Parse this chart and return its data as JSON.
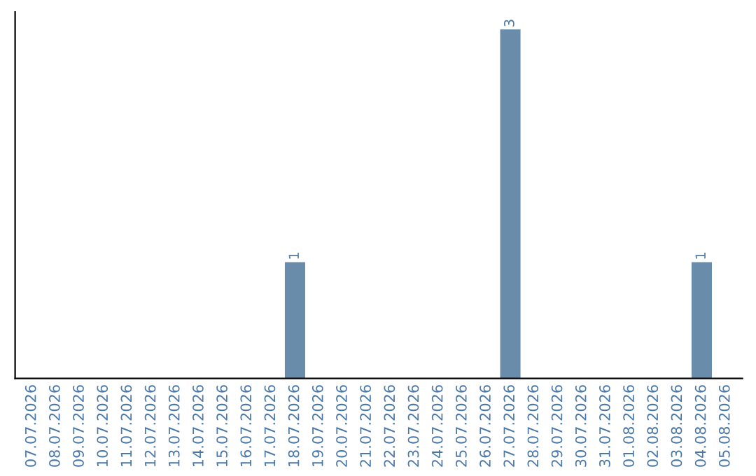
{
  "chart_data": {
    "type": "bar",
    "categories": [
      "07.07.2026",
      "08.07.2026",
      "09.07.2026",
      "10.07.2026",
      "11.07.2026",
      "12.07.2026",
      "13.07.2026",
      "14.07.2026",
      "15.07.2026",
      "16.07.2026",
      "17.07.2026",
      "18.07.2026",
      "19.07.2026",
      "20.07.2026",
      "21.07.2026",
      "22.07.2026",
      "23.07.2026",
      "24.07.2026",
      "25.07.2026",
      "26.07.2026",
      "27.07.2026",
      "28.07.2026",
      "29.07.2026",
      "30.07.2026",
      "31.07.2026",
      "01.08.2026",
      "02.08.2026",
      "03.08.2026",
      "04.08.2026",
      "05.08.2026"
    ],
    "values": [
      0,
      0,
      0,
      0,
      0,
      0,
      0,
      0,
      0,
      0,
      0,
      1,
      0,
      0,
      0,
      0,
      0,
      0,
      0,
      0,
      3,
      0,
      0,
      0,
      0,
      0,
      0,
      0,
      1,
      0
    ],
    "value_labels": [
      null,
      null,
      null,
      null,
      null,
      null,
      null,
      null,
      null,
      null,
      null,
      "1",
      null,
      null,
      null,
      null,
      null,
      null,
      null,
      null,
      "3",
      null,
      null,
      null,
      null,
      null,
      null,
      null,
      "1",
      null
    ],
    "color": "#6a8cab",
    "tick_labels": "x",
    "grid": false,
    "legend": false
  }
}
